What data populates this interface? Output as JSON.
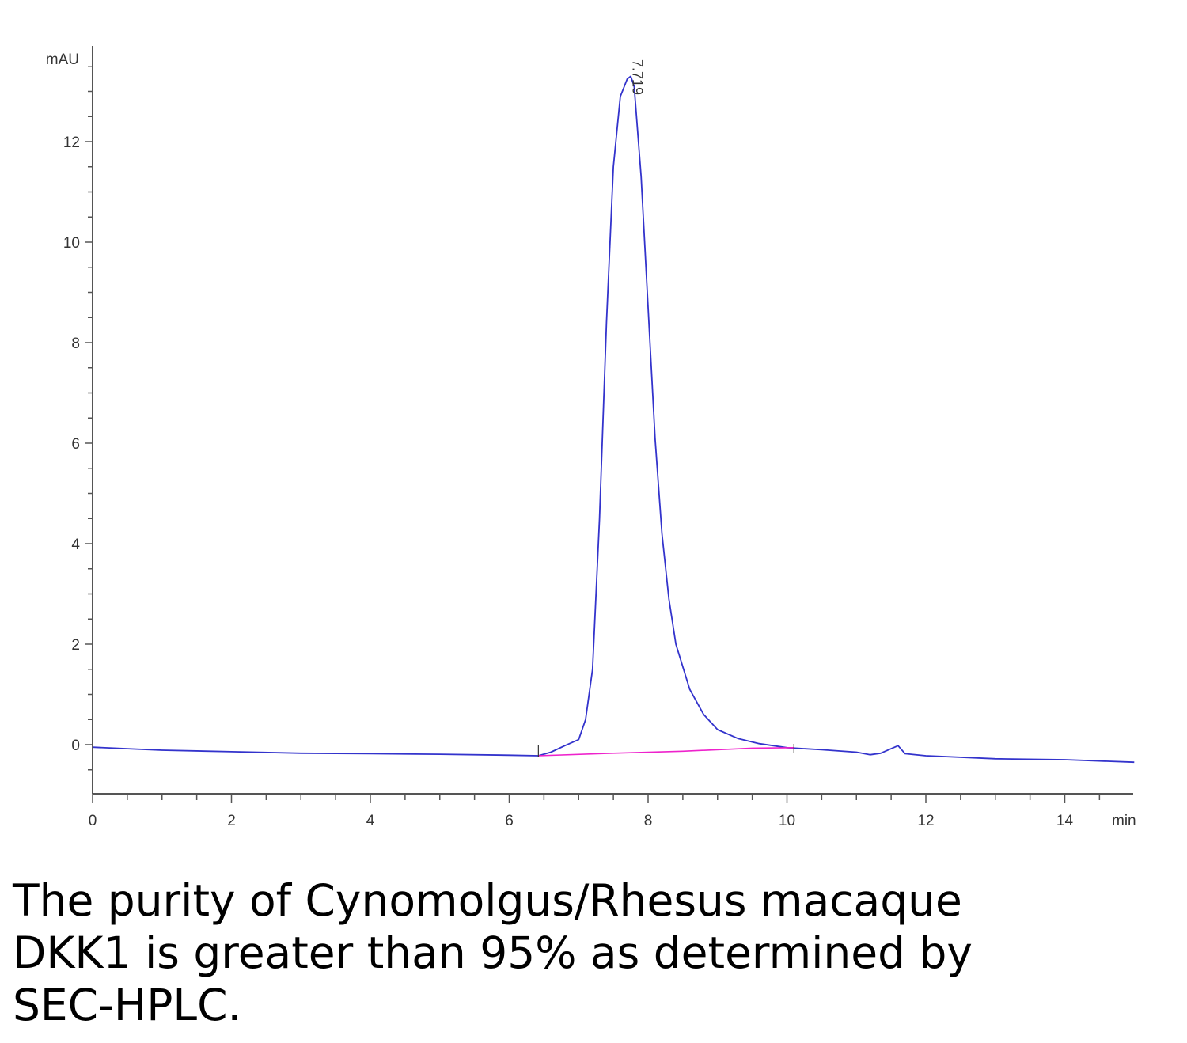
{
  "chart_data": {
    "type": "line",
    "ylabel": "mAU",
    "xlabel": "min",
    "xlim": [
      0,
      15
    ],
    "ylim": [
      -1,
      13.6
    ],
    "x_ticks": [
      "0",
      "2",
      "4",
      "6",
      "8",
      "10",
      "12",
      "14"
    ],
    "y_ticks": [
      "0",
      "2",
      "4",
      "6",
      "8",
      "10",
      "12"
    ],
    "peak_label": "7.719",
    "series": [
      {
        "color": "#3333cc",
        "x": [
          0,
          0.5,
          1,
          2,
          3,
          4,
          5,
          6,
          6.42,
          6.6,
          6.8,
          7.0,
          7.1,
          7.2,
          7.3,
          7.4,
          7.5,
          7.6,
          7.7,
          7.75,
          7.8,
          7.9,
          8.0,
          8.1,
          8.2,
          8.3,
          8.4,
          8.6,
          8.8,
          9.0,
          9.3,
          9.6,
          10.0,
          10.5,
          11.0,
          11.2,
          11.35,
          11.5,
          11.6,
          11.7,
          12.0,
          13.0,
          14.0,
          15.0
        ],
        "y": [
          -0.05,
          -0.08,
          -0.11,
          -0.14,
          -0.17,
          -0.18,
          -0.19,
          -0.21,
          -0.22,
          -0.15,
          -0.02,
          0.1,
          0.5,
          1.5,
          4.5,
          8.4,
          11.5,
          12.9,
          13.25,
          13.3,
          13.1,
          11.3,
          8.7,
          6.1,
          4.2,
          2.9,
          2.0,
          1.1,
          0.6,
          0.3,
          0.12,
          0.02,
          -0.06,
          -0.1,
          -0.15,
          -0.2,
          -0.17,
          -0.08,
          -0.02,
          -0.18,
          -0.22,
          -0.28,
          -0.3,
          -0.35
        ]
      },
      {
        "color": "#ee22cc",
        "x": [
          6.42,
          7.5,
          8.5,
          9.5,
          10.1
        ],
        "y": [
          -0.22,
          -0.17,
          -0.13,
          -0.07,
          -0.06
        ]
      }
    ]
  },
  "caption": "The purity of Cynomolgus/Rhesus macaque DKK1 is greater than 95% as determined by SEC-HPLC."
}
